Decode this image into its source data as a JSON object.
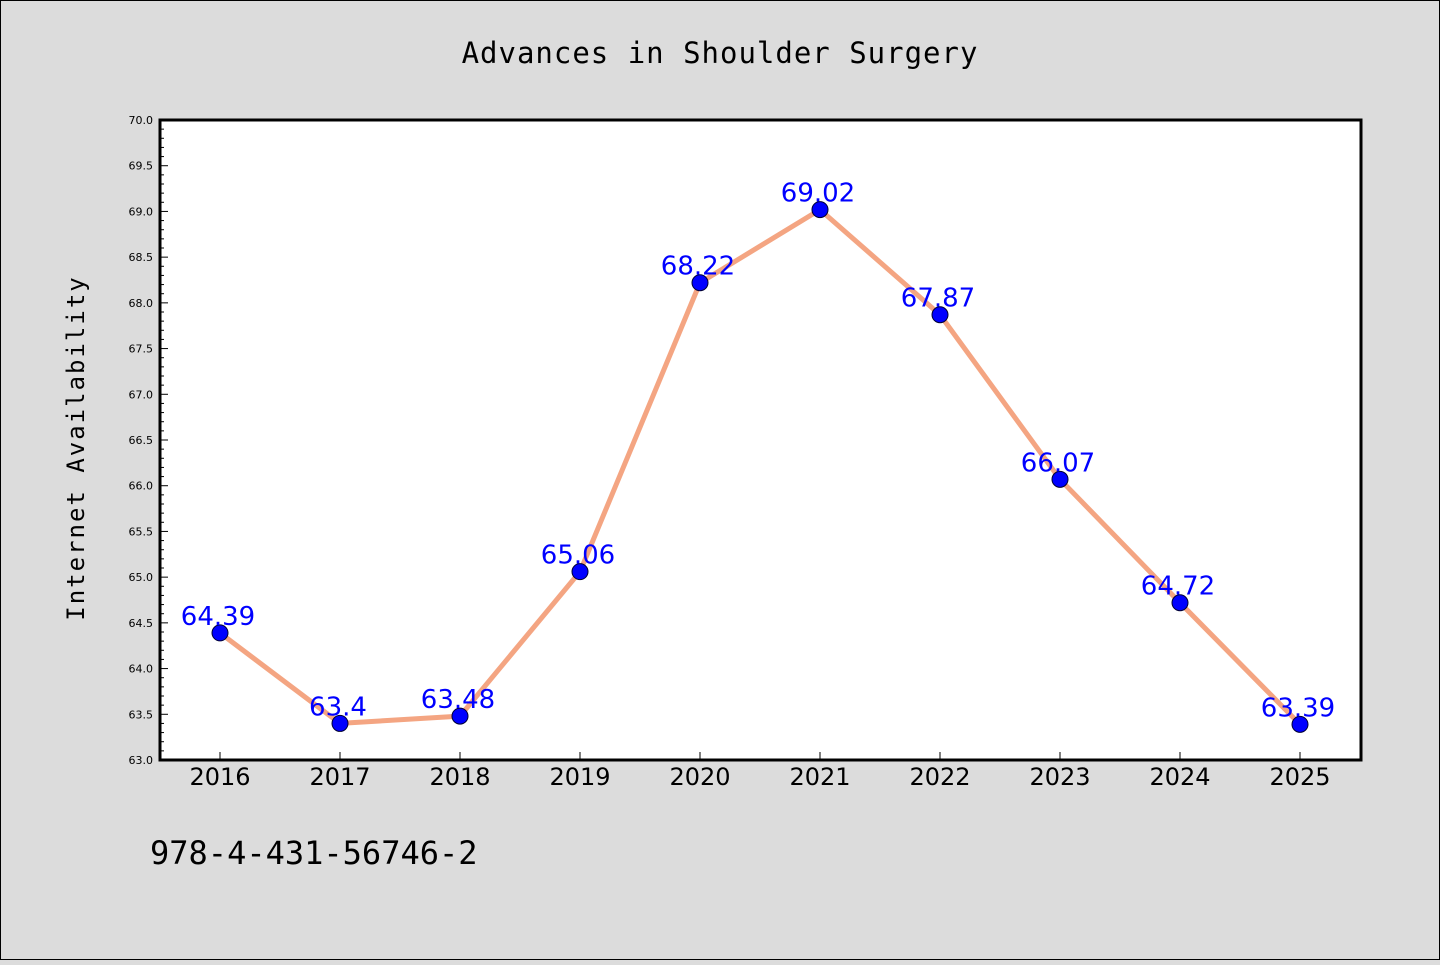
{
  "chart_data": {
    "type": "line",
    "title": "Advances in Shoulder Surgery",
    "xlabel": "",
    "ylabel": "Internet Availability",
    "categories": [
      "2016",
      "2017",
      "2018",
      "2019",
      "2020",
      "2021",
      "2022",
      "2023",
      "2024",
      "2025"
    ],
    "series": [
      {
        "values": [
          64.39,
          63.4,
          63.48,
          65.06,
          68.22,
          69.02,
          67.87,
          66.07,
          64.72,
          63.39
        ],
        "data_labels": [
          "64.39",
          "63.4",
          "63.48",
          "65.06",
          "68.22",
          "69.02",
          "67.87",
          "66.07",
          "64.72",
          "63.39"
        ]
      }
    ],
    "ylim": [
      63.0,
      70.0
    ],
    "yticks": [
      "63.0",
      "63.5",
      "64.0",
      "64.5",
      "65.0",
      "65.5",
      "66.0",
      "66.5",
      "67.0",
      "67.5",
      "68.0",
      "68.5",
      "69.0",
      "69.5",
      "70.0"
    ],
    "grid": false,
    "legend": "none",
    "colors": {
      "line": "#f4a582",
      "marker": "#0000ff",
      "data_label": "#0000ff",
      "plot_background": "#ffffff",
      "page_background": "#dcdcdc"
    }
  },
  "footer": {
    "code": "978-4-431-56746-2"
  }
}
